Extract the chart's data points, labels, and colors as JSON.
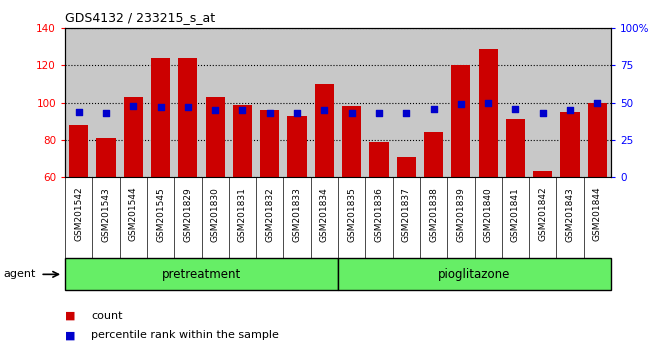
{
  "title": "GDS4132 / 233215_s_at",
  "categories": [
    "GSM201542",
    "GSM201543",
    "GSM201544",
    "GSM201545",
    "GSM201829",
    "GSM201830",
    "GSM201831",
    "GSM201832",
    "GSM201833",
    "GSM201834",
    "GSM201835",
    "GSM201836",
    "GSM201837",
    "GSM201838",
    "GSM201839",
    "GSM201840",
    "GSM201841",
    "GSM201842",
    "GSM201843",
    "GSM201844"
  ],
  "counts": [
    88,
    81,
    103,
    124,
    124,
    103,
    99,
    96,
    93,
    110,
    98,
    79,
    71,
    84,
    120,
    129,
    91,
    63,
    95,
    100
  ],
  "percentiles": [
    44,
    43,
    48,
    47,
    47,
    45,
    45,
    43,
    43,
    45,
    43,
    43,
    43,
    46,
    49,
    50,
    46,
    43,
    45,
    50
  ],
  "ylim_left": [
    60,
    140
  ],
  "ylim_right": [
    0,
    100
  ],
  "yticks_left": [
    60,
    80,
    100,
    120,
    140
  ],
  "yticks_right": [
    0,
    25,
    50,
    75,
    100
  ],
  "yticklabels_right": [
    "0",
    "25",
    "50",
    "75",
    "100%"
  ],
  "bar_color": "#cc0000",
  "dot_color": "#0000cc",
  "pretreatment_count": 10,
  "group1_label": "pretreatment",
  "group2_label": "pioglitazone",
  "agent_label": "agent",
  "legend_count": "count",
  "legend_pct": "percentile rank within the sample",
  "bg_color": "#c8c8c8",
  "green_color": "#66ee66",
  "tick_label_area_color": "#c0c0c0"
}
